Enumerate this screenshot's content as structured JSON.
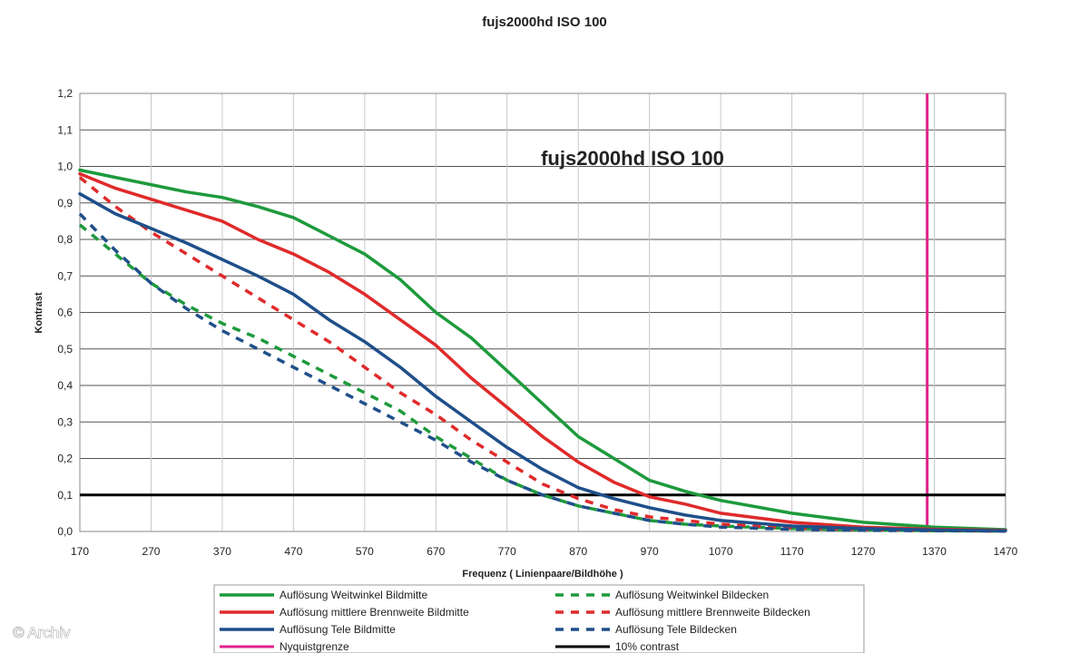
{
  "chart_data": {
    "type": "line",
    "title": "fujs2000hd ISO 100",
    "inset_title": "fujs2000hd ISO 100",
    "xlabel": "Frequenz ( Linienpaare/Bildhöhe )",
    "ylabel": "Kontrast",
    "xlim": [
      170,
      1470
    ],
    "ylim": [
      0,
      1.2
    ],
    "x_ticks": [
      "170",
      "270",
      "370",
      "470",
      "570",
      "670",
      "770",
      "870",
      "970",
      "1070",
      "1170",
      "1270",
      "1370",
      "1470"
    ],
    "y_ticks": [
      "0,0",
      "0,1",
      "0,2",
      "0,3",
      "0,4",
      "0,5",
      "0,6",
      "0,7",
      "0,8",
      "0,9",
      "1,0",
      "1,1",
      "1,2"
    ],
    "grid": true,
    "legend_position": "bottom",
    "series": [
      {
        "name": "Auflösung Weitwinkel Bildmitte",
        "color": "#1e9a3c",
        "dash": false,
        "x": [
          170,
          220,
          270,
          320,
          370,
          420,
          470,
          520,
          570,
          620,
          670,
          720,
          770,
          820,
          870,
          920,
          970,
          1020,
          1070,
          1170,
          1270,
          1370,
          1470
        ],
        "y": [
          0.99,
          0.97,
          0.95,
          0.93,
          0.915,
          0.89,
          0.86,
          0.81,
          0.76,
          0.69,
          0.6,
          0.53,
          0.44,
          0.35,
          0.26,
          0.2,
          0.14,
          0.11,
          0.085,
          0.05,
          0.025,
          0.012,
          0.005
        ]
      },
      {
        "name": "Auflösung Weitwinkel Bildecken",
        "color": "#1e9a3c",
        "dash": true,
        "x": [
          170,
          220,
          270,
          320,
          370,
          420,
          470,
          520,
          570,
          620,
          670,
          720,
          770,
          820,
          870,
          920,
          970,
          1020,
          1070,
          1170,
          1270,
          1370,
          1470
        ],
        "y": [
          0.84,
          0.76,
          0.68,
          0.62,
          0.57,
          0.53,
          0.48,
          0.43,
          0.38,
          0.33,
          0.26,
          0.2,
          0.14,
          0.1,
          0.07,
          0.05,
          0.03,
          0.02,
          0.015,
          0.008,
          0.004,
          0.002,
          0.001
        ]
      },
      {
        "name": "Auflösung mittlere Brennweite Bildmitte",
        "color": "#e02a2a",
        "dash": false,
        "x": [
          170,
          220,
          270,
          320,
          370,
          420,
          470,
          520,
          570,
          620,
          670,
          720,
          770,
          820,
          870,
          920,
          970,
          1020,
          1070,
          1170,
          1270,
          1370,
          1470
        ],
        "y": [
          0.98,
          0.94,
          0.91,
          0.88,
          0.85,
          0.8,
          0.76,
          0.71,
          0.65,
          0.58,
          0.51,
          0.42,
          0.34,
          0.26,
          0.19,
          0.135,
          0.095,
          0.075,
          0.05,
          0.025,
          0.012,
          0.006,
          0.003
        ]
      },
      {
        "name": "Auflösung mittlere Brennweite Bildecken",
        "color": "#e02a2a",
        "dash": true,
        "x": [
          170,
          220,
          270,
          320,
          370,
          420,
          470,
          520,
          570,
          620,
          670,
          720,
          770,
          820,
          870,
          920,
          970,
          1020,
          1070,
          1170,
          1270,
          1370,
          1470
        ],
        "y": [
          0.97,
          0.89,
          0.82,
          0.76,
          0.7,
          0.64,
          0.58,
          0.52,
          0.45,
          0.38,
          0.32,
          0.25,
          0.19,
          0.13,
          0.09,
          0.06,
          0.04,
          0.03,
          0.02,
          0.01,
          0.005,
          0.003,
          0.001
        ]
      },
      {
        "name": "Auflösung Tele Bildmitte",
        "color": "#1f4f8a",
        "dash": false,
        "x": [
          170,
          220,
          270,
          320,
          370,
          420,
          470,
          520,
          570,
          620,
          670,
          720,
          770,
          820,
          870,
          920,
          970,
          1020,
          1070,
          1170,
          1270,
          1370,
          1470
        ],
        "y": [
          0.925,
          0.87,
          0.83,
          0.79,
          0.745,
          0.7,
          0.65,
          0.58,
          0.52,
          0.45,
          0.37,
          0.3,
          0.23,
          0.17,
          0.12,
          0.09,
          0.065,
          0.045,
          0.03,
          0.015,
          0.008,
          0.004,
          0.002
        ]
      },
      {
        "name": "Auflösung Tele Bildecken",
        "color": "#1f4f8a",
        "dash": true,
        "x": [
          170,
          220,
          270,
          320,
          370,
          420,
          470,
          520,
          570,
          620,
          670,
          720,
          770,
          820,
          870,
          920,
          970,
          1020,
          1070,
          1170,
          1270,
          1370,
          1470
        ],
        "y": [
          0.87,
          0.77,
          0.68,
          0.61,
          0.55,
          0.5,
          0.45,
          0.4,
          0.35,
          0.3,
          0.25,
          0.19,
          0.14,
          0.1,
          0.07,
          0.05,
          0.03,
          0.02,
          0.012,
          0.006,
          0.003,
          0.002,
          0.001
        ]
      }
    ],
    "reference_lines": [
      {
        "name": "Nyquistgrenze",
        "orientation": "vertical",
        "x": 1360,
        "color": "#e0208c"
      },
      {
        "name": "10% contrast",
        "orientation": "horizontal",
        "y": 0.1,
        "color": "#000000"
      }
    ],
    "legend_layout": [
      [
        "Auflösung Weitwinkel Bildmitte",
        "Auflösung Weitwinkel Bildecken"
      ],
      [
        "Auflösung mittlere Brennweite Bildmitte",
        "Auflösung mittlere Brennweite Bildecken"
      ],
      [
        "Auflösung Tele Bildmitte",
        "Auflösung Tele Bildecken"
      ],
      [
        "Nyquistgrenze",
        "10% contrast"
      ]
    ]
  },
  "watermark": "© Archiv"
}
